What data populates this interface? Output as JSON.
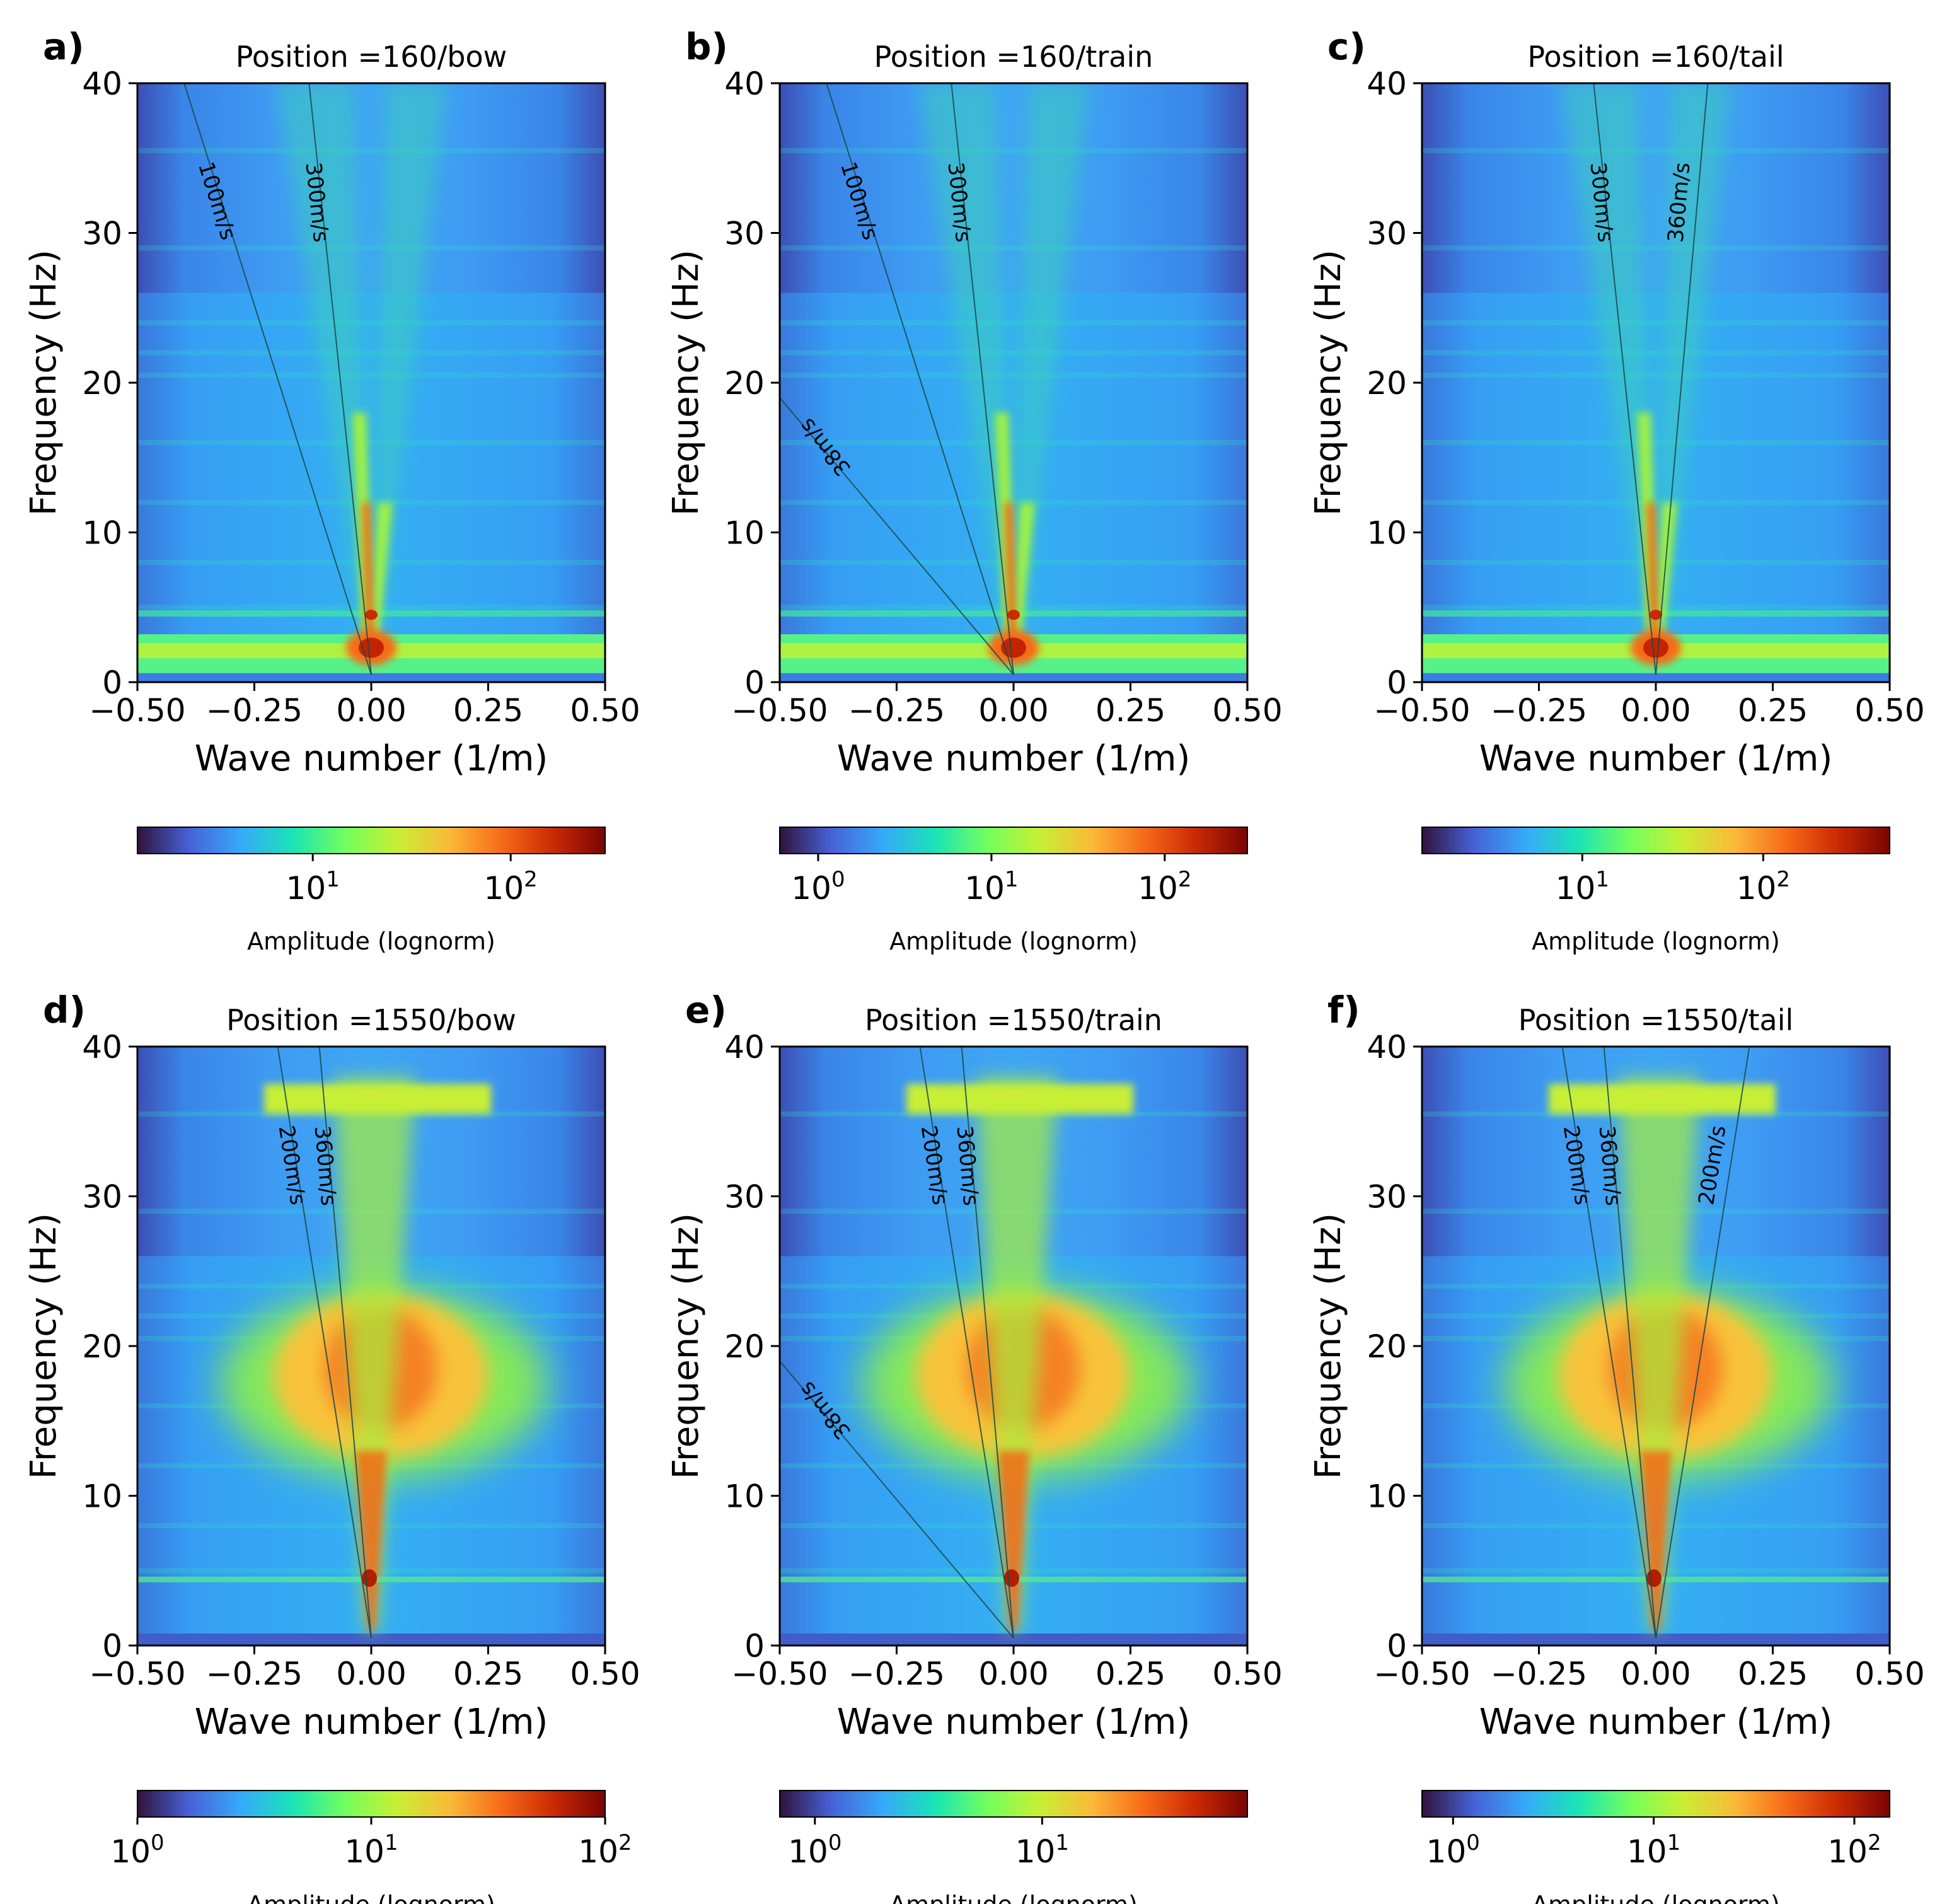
{
  "figure": {
    "colormap": [
      "#30123b",
      "#4662d7",
      "#36aaf9",
      "#1ae4b6",
      "#72fe5e",
      "#c8ef34",
      "#faba39",
      "#f66b19",
      "#ca2a04",
      "#7a0403"
    ]
  },
  "chart_data": [
    {
      "panel": "a)",
      "type": "heatmap",
      "title": "Position =160/bow",
      "xlabel": "Wave number (1/m)",
      "ylabel": "Frequency (Hz)",
      "xlim": [
        -0.5,
        0.5
      ],
      "ylim": [
        0,
        40
      ],
      "xticks": [
        "−0.50",
        "−0.25",
        "0.00",
        "0.25",
        "0.50"
      ],
      "xtick_values": [
        -0.5,
        -0.25,
        0,
        0.25,
        0.5
      ],
      "yticks": [
        "0",
        "10",
        "20",
        "30",
        "40"
      ],
      "ytick_values": [
        0,
        10,
        20,
        30,
        40
      ],
      "colorbar": {
        "label": "Amplitude (lognorm)",
        "vmin": 1.3,
        "vmax": 300,
        "ticks": [
          {
            "base": "10",
            "exp": "1",
            "value": 10
          },
          {
            "base": "10",
            "exp": "2",
            "value": 100
          }
        ]
      },
      "pattern": "narrow",
      "velocity_lines": [
        {
          "label": "100m/s",
          "velocity": -100,
          "k_top": -0.4
        },
        {
          "label": "300m/s",
          "velocity": -300,
          "k_top": -0.133
        }
      ]
    },
    {
      "panel": "b)",
      "type": "heatmap",
      "title": "Position =160/train",
      "xlabel": "Wave number (1/m)",
      "ylabel": "Frequency (Hz)",
      "xlim": [
        -0.5,
        0.5
      ],
      "ylim": [
        0,
        40
      ],
      "xticks": [
        "−0.50",
        "−0.25",
        "0.00",
        "0.25",
        "0.50"
      ],
      "xtick_values": [
        -0.5,
        -0.25,
        0,
        0.25,
        0.5
      ],
      "yticks": [
        "0",
        "10",
        "20",
        "30",
        "40"
      ],
      "ytick_values": [
        0,
        10,
        20,
        30,
        40
      ],
      "colorbar": {
        "label": "Amplitude (lognorm)",
        "vmin": 0.6,
        "vmax": 300,
        "ticks": [
          {
            "base": "10",
            "exp": "0",
            "value": 1
          },
          {
            "base": "10",
            "exp": "1",
            "value": 10
          },
          {
            "base": "10",
            "exp": "2",
            "value": 100
          }
        ]
      },
      "pattern": "narrow",
      "velocity_lines": [
        {
          "label": "100m/s",
          "velocity": -100,
          "k_top": -0.4
        },
        {
          "label": "300m/s",
          "velocity": -300,
          "k_top": -0.133
        },
        {
          "label": "38m/s",
          "velocity": -38,
          "k_top": -1.05
        }
      ]
    },
    {
      "panel": "c)",
      "type": "heatmap",
      "title": "Position =160/tail",
      "xlabel": "Wave number (1/m)",
      "ylabel": "Frequency (Hz)",
      "xlim": [
        -0.5,
        0.5
      ],
      "ylim": [
        0,
        40
      ],
      "xticks": [
        "−0.50",
        "−0.25",
        "0.00",
        "0.25",
        "0.50"
      ],
      "xtick_values": [
        -0.5,
        -0.25,
        0,
        0.25,
        0.5
      ],
      "yticks": [
        "0",
        "10",
        "20",
        "30",
        "40"
      ],
      "ytick_values": [
        0,
        10,
        20,
        30,
        40
      ],
      "colorbar": {
        "label": "Amplitude (lognorm)",
        "vmin": 1.3,
        "vmax": 500,
        "ticks": [
          {
            "base": "10",
            "exp": "1",
            "value": 10
          },
          {
            "base": "10",
            "exp": "2",
            "value": 100
          }
        ]
      },
      "pattern": "narrow",
      "velocity_lines": [
        {
          "label": "300m/s",
          "velocity": -300,
          "k_top": -0.133
        },
        {
          "label": "360m/s",
          "velocity": 360,
          "k_top": 0.111
        }
      ]
    },
    {
      "panel": "d)",
      "type": "heatmap",
      "title": "Position =1550/bow",
      "xlabel": "Wave number (1/m)",
      "ylabel": "Frequency (Hz)",
      "xlim": [
        -0.5,
        0.5
      ],
      "ylim": [
        0,
        40
      ],
      "xticks": [
        "−0.50",
        "−0.25",
        "0.00",
        "0.25",
        "0.50"
      ],
      "xtick_values": [
        -0.5,
        -0.25,
        0,
        0.25,
        0.5
      ],
      "yticks": [
        "0",
        "10",
        "20",
        "30",
        "40"
      ],
      "ytick_values": [
        0,
        10,
        20,
        30,
        40
      ],
      "colorbar": {
        "label": "Amplitude (lognorm)",
        "vmin": 1,
        "vmax": 100,
        "ticks": [
          {
            "base": "10",
            "exp": "0",
            "value": 1
          },
          {
            "base": "10",
            "exp": "1",
            "value": 10
          },
          {
            "base": "10",
            "exp": "2",
            "value": 100
          }
        ]
      },
      "pattern": "broad",
      "velocity_lines": [
        {
          "label": "200m/s",
          "velocity": -200,
          "k_top": -0.2
        },
        {
          "label": "360m/s",
          "velocity": -360,
          "k_top": -0.111
        }
      ]
    },
    {
      "panel": "e)",
      "type": "heatmap",
      "title": "Position =1550/train",
      "xlabel": "Wave number (1/m)",
      "ylabel": "Frequency (Hz)",
      "xlim": [
        -0.5,
        0.5
      ],
      "ylim": [
        0,
        40
      ],
      "xticks": [
        "−0.50",
        "−0.25",
        "0.00",
        "0.25",
        "0.50"
      ],
      "xtick_values": [
        -0.5,
        -0.25,
        0,
        0.25,
        0.5
      ],
      "yticks": [
        "0",
        "10",
        "20",
        "30",
        "40"
      ],
      "ytick_values": [
        0,
        10,
        20,
        30,
        40
      ],
      "colorbar": {
        "label": "Amplitude (lognorm)",
        "vmin": 0.7,
        "vmax": 80,
        "ticks": [
          {
            "base": "10",
            "exp": "0",
            "value": 1
          },
          {
            "base": "10",
            "exp": "1",
            "value": 10
          }
        ]
      },
      "pattern": "broad",
      "velocity_lines": [
        {
          "label": "200m/s",
          "velocity": -200,
          "k_top": -0.2
        },
        {
          "label": "360m/s",
          "velocity": -360,
          "k_top": -0.111
        },
        {
          "label": "38m/s",
          "velocity": -38,
          "k_top": -1.05
        }
      ]
    },
    {
      "panel": "f)",
      "type": "heatmap",
      "title": "Position =1550/tail",
      "xlabel": "Wave number (1/m)",
      "ylabel": "Frequency (Hz)",
      "xlim": [
        -0.5,
        0.5
      ],
      "ylim": [
        0,
        40
      ],
      "xticks": [
        "−0.50",
        "−0.25",
        "0.00",
        "0.25",
        "0.50"
      ],
      "xtick_values": [
        -0.5,
        -0.25,
        0,
        0.25,
        0.5
      ],
      "yticks": [
        "0",
        "10",
        "20",
        "30",
        "40"
      ],
      "ytick_values": [
        0,
        10,
        20,
        30,
        40
      ],
      "colorbar": {
        "label": "Amplitude (lognorm)",
        "vmin": 0.7,
        "vmax": 150,
        "ticks": [
          {
            "base": "10",
            "exp": "0",
            "value": 1
          },
          {
            "base": "10",
            "exp": "1",
            "value": 10
          },
          {
            "base": "10",
            "exp": "2",
            "value": 100
          }
        ]
      },
      "pattern": "broad",
      "velocity_lines": [
        {
          "label": "200m/s",
          "velocity": -200,
          "k_top": -0.2
        },
        {
          "label": "360m/s",
          "velocity": -360,
          "k_top": -0.111
        },
        {
          "label": "200m/s",
          "velocity": 200,
          "k_top": 0.2
        }
      ]
    }
  ]
}
